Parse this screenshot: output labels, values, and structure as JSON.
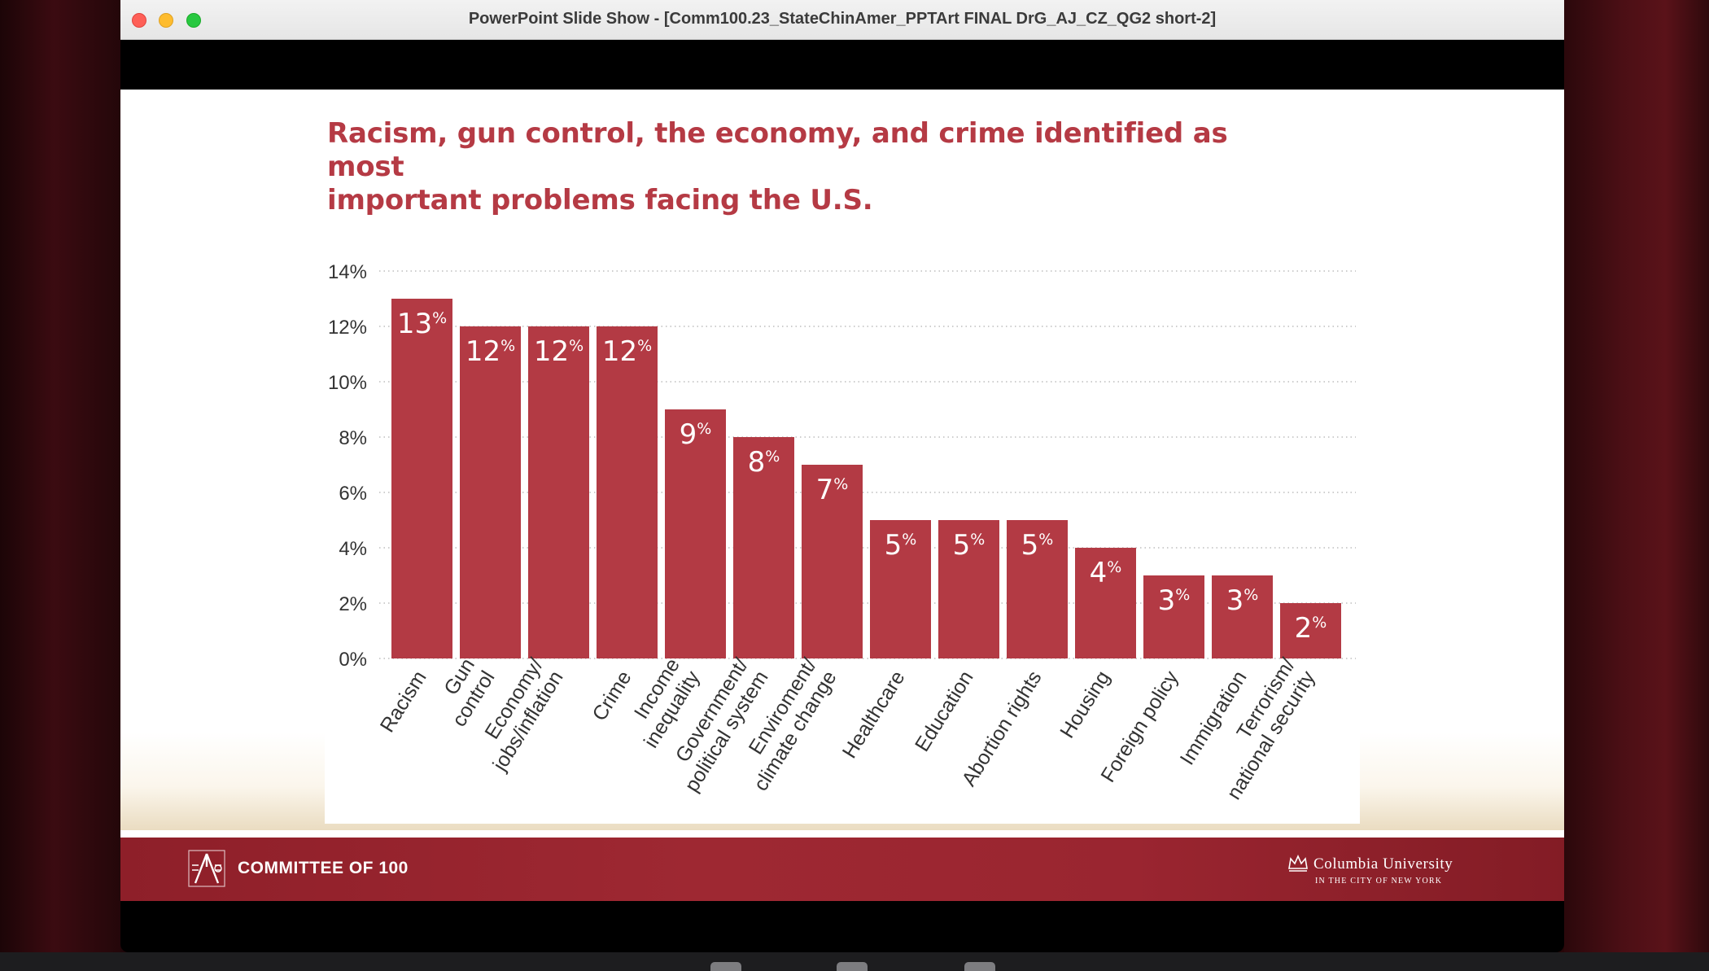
{
  "window": {
    "title": "PowerPoint Slide Show - [Comm100.23_StateChinAmer_PPTArt FINAL DrG_AJ_CZ_QG2 short-2]"
  },
  "slide": {
    "title_line1": "Racism, gun control, the economy, and crime identified as most",
    "title_line2": "important problems facing the U.S.",
    "footer": {
      "left_text": "COMMITTEE OF 100",
      "right_text": "Columbia University",
      "right_subtext": "IN THE CITY OF NEW YORK"
    }
  },
  "colors": {
    "bar": "#b33a44",
    "title": "#b53a44",
    "footer": "#9a2530"
  },
  "chart_data": {
    "type": "bar",
    "categories": [
      "Racism",
      "Gun\ncontrol",
      "Economy/\njobs/inflation",
      "Crime",
      "Income\ninequality",
      "Government/\npolitical system",
      "Enviroment/\nclimate change",
      "Healthcare",
      "Education",
      "Abortion rights",
      "Housing",
      "Foreign policy",
      "Immigration",
      "Terrorism/\nnational security"
    ],
    "values": [
      13,
      12,
      12,
      12,
      9,
      8,
      7,
      5,
      5,
      5,
      4,
      3,
      3,
      2
    ],
    "data_label_unit": "%",
    "yticks": [
      "0%",
      "2%",
      "4%",
      "6%",
      "8%",
      "10%",
      "12%",
      "14%"
    ],
    "ylim": [
      0,
      14
    ],
    "grid": true,
    "title": "Racism, gun control, the economy, and crime identified as most important problems facing the U.S."
  }
}
